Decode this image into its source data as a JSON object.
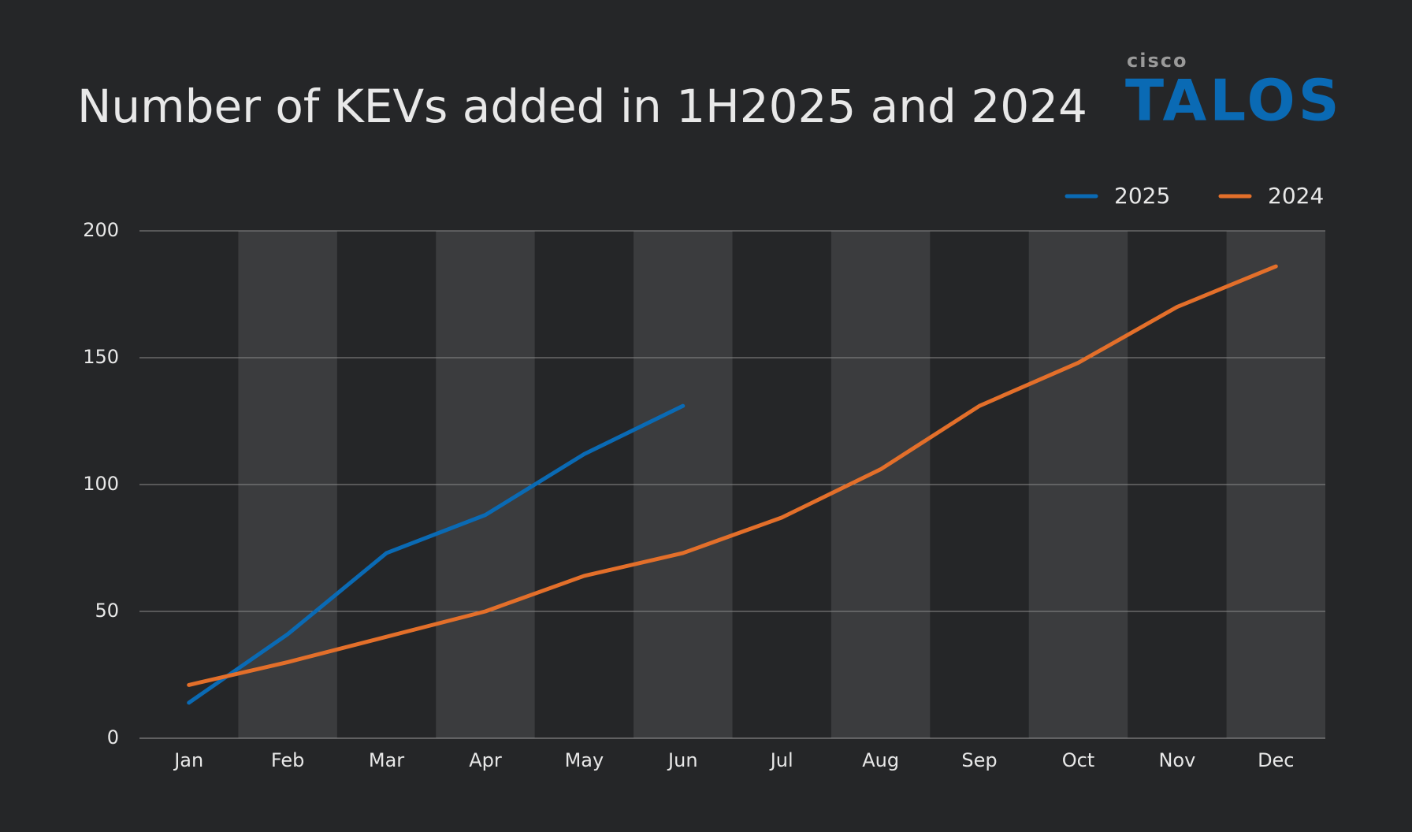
{
  "logo": {
    "brand": "cisco",
    "product": "TALOS"
  },
  "chart_data": {
    "type": "line",
    "title": "Number of KEVs added in 1H2025 and 2024",
    "categories": [
      "Jan",
      "Feb",
      "Mar",
      "Apr",
      "May",
      "Jun",
      "Jul",
      "Aug",
      "Sep",
      "Oct",
      "Nov",
      "Dec"
    ],
    "series": [
      {
        "name": "2025",
        "color": "#0a6ab4",
        "values": [
          14,
          41,
          73,
          88,
          112,
          131,
          null,
          null,
          null,
          null,
          null,
          null
        ]
      },
      {
        "name": "2024",
        "color": "#e36f2a",
        "values": [
          21,
          30,
          40,
          50,
          64,
          73,
          87,
          106,
          131,
          148,
          170,
          186
        ]
      }
    ],
    "ylim": [
      0,
      200
    ],
    "yticks": [
      0,
      50,
      100,
      150,
      200
    ],
    "grid": true,
    "legend": "top-right"
  }
}
